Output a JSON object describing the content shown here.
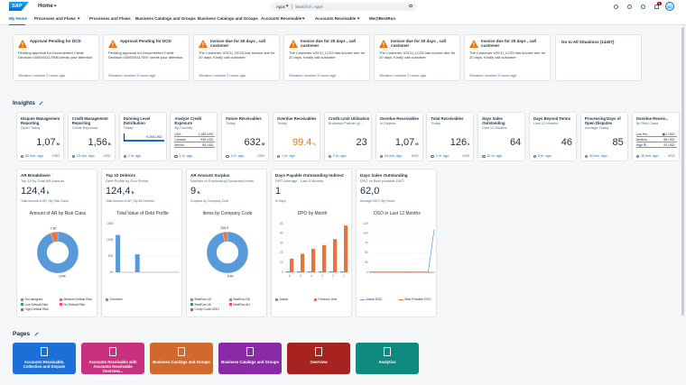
{
  "header": {
    "logo": "SAP",
    "title": "Home",
    "search_scope": "Apps",
    "search_placeholder": "Search in: Apps",
    "notification_count": "1",
    "avatar": "DJ"
  },
  "nav": [
    "My Home",
    "Processes and Flows",
    "Processes and Flows",
    "Business Catalogs and Groups",
    "Business Catalogs and Groups",
    "Accounts Receivable",
    "Accounts Receivable",
    "Me@BestRun"
  ],
  "situations": [
    {
      "title": "Approval Pending for DCD",
      "text": "Pending approval for Documented Credit Decision 0300001117598 needs your attention.",
      "footer": "Situation created 3 hours ago"
    },
    {
      "title": "Approval Pending for DCD",
      "text": "Pending approval for Documented Credit Decision 0300001117597 needs your attention.",
      "footer": "Situation created 3 hours ago"
    },
    {
      "title": "Invoice due for 20 days , call customer",
      "text": "The Customer USCU_SC03 has invoice due for 20 days. Kindly call customer",
      "footer": "Situation created 3 hours ago"
    },
    {
      "title": "Invoice due for 20 days , call customer",
      "text": "The Customer USCU_LC03 has invoice due for 20 days. Kindly call customer",
      "footer": "Situation created 3 hours ago"
    },
    {
      "title": "Invoice due for 20 days , call customer",
      "text": "The Customer USCU_LC04 has invoice due for 20 days. Kindly call customer",
      "footer": "Situation created 3 hours ago"
    },
    {
      "title": "Invoice due for 20 days , call customer",
      "text": "The Customer USCU_LC05 has invoice due for 20 days. Kindly call customer",
      "footer": "Situation created 3 hours ago"
    }
  ],
  "all_situations": "Go to All Situations (14407)",
  "insights": {
    "title": "Insights",
    "tiles": [
      {
        "title": "Dispute Management Reporting",
        "subtitle": "Open Today",
        "value": "1,07",
        "scale": "M",
        "footer": "50 min. ago",
        "unit": "USD"
      },
      {
        "title": "Credit Management Reporting",
        "subtitle": "Credit Exposure",
        "value": "1,56",
        "scale": "B",
        "footer": "15 min. ago",
        "unit": "USD"
      },
      {
        "title": "Dunning Level Distribution",
        "subtitle": "Today",
        "bar_label": "9,208 USD",
        "footer": "2 hr. ago"
      },
      {
        "title": "Analyze Credit Exposure",
        "subtitle": "By Country",
        "rows": [
          {
            "label": "USA",
            "value": "1,158 USD"
          },
          {
            "label": "Canada",
            "value": "935 USD"
          },
          {
            "label": "Mexico",
            "value": "88 USD"
          }
        ],
        "footer": "1 hr. ago"
      },
      {
        "title": "Future Receivables",
        "subtitle": "Today",
        "value": "632",
        "scale": "M",
        "footer": "1 hr. ago",
        "unit": "USD"
      },
      {
        "title": "Overdue Receivables",
        "subtitle": "Today",
        "value": "99.4",
        "scale": "%",
        "value_color": "#e9730c",
        "footer": "1 hr. ago"
      },
      {
        "title": "Credit Limit Utilization",
        "subtitle": "Business Partner gt ...",
        "value": "23",
        "footer": "2 hr. ago"
      },
      {
        "title": "Overdue Receivables",
        "subtitle": "In Dispute",
        "value": "1,07",
        "scale": "M",
        "footer": "15 min. ago",
        "unit": "USD"
      },
      {
        "title": "Total Receivables",
        "subtitle": "Today",
        "value": "126",
        "scale": "k",
        "footer": "1 hr. ago",
        "unit": "USD"
      },
      {
        "title": "Days Sales Outstanding",
        "subtitle": "Last 12 Months",
        "value": "64",
        "footer": "10 hr. ago"
      },
      {
        "title": "Days Beyond Terms",
        "subtitle": "Last 12 Months",
        "value": "46",
        "footer": "8 hr. ago"
      },
      {
        "title": "Processing Days of Open Disputes",
        "subtitle": "Average Today",
        "value": "85",
        "footer": "30 min. ago"
      },
      {
        "title": "Overdue Receiv...",
        "subtitle": "By Risk Class",
        "rows": [
          {
            "label": "Low Ris...",
            "value": "201 USD"
          },
          {
            "label": "Medium...",
            "value": "88 USD"
          },
          {
            "label": "High Ri...",
            "value": "52 USD"
          }
        ],
        "footer": "45 min. ago",
        "unit": "USD"
      }
    ]
  },
  "cards": [
    {
      "title": "AR Breakdown",
      "subtitle": "Top 10 by Total AR Amount",
      "value": "124,4",
      "scale": "k",
      "details": "Total Amount of AR | By Risk Class",
      "chart": {
        "type": "donut",
        "title": "Amount of AR by Risk Class",
        "values": [
          124,
          7.5
        ],
        "value_labels": [
          "124K",
          "7.5K"
        ],
        "legend": [
          {
            "name": "Not assigned",
            "color": "#5899da"
          },
          {
            "name": "Medium Default Risk",
            "color": "#e8743b"
          },
          {
            "name": "Low Default Risk",
            "color": "#19a979"
          },
          {
            "name": "No Default Risk",
            "color": "#ed4a7b"
          },
          {
            "name": "High Default Risk",
            "color": "#945ecf"
          }
        ]
      }
    },
    {
      "title": "Top 10 Debtors",
      "subtitle": "Debt Profile by Due Period",
      "value": "124,4",
      "scale": "k",
      "details": "Total Amount of AR | By All Overdue",
      "chart": {
        "type": "bar",
        "title": "Total Value of Debt Profile",
        "categories": [
          null,
          null,
          null,
          null,
          null,
          null,
          null,
          null,
          null,
          null
        ],
        "series": [
          {
            "name": "Overview",
            "color": "#5899da",
            "values": [
              115,
              0.5,
              0.5,
              55,
              0.5,
              0.5,
              0.5,
              0.5,
              0.5,
              0.5
            ]
          }
        ],
        "ylim": [
          0,
          150
        ],
        "yticks": [
          {
            "value": 0,
            "label": "0K"
          },
          {
            "value": 50,
            "label": "50K"
          },
          {
            "value": 100,
            "label": "100K"
          },
          {
            "value": 150,
            "label": "150K"
          }
        ]
      }
    },
    {
      "title": "AR Amount Surplus",
      "subtitle": "Number of Purchasing Document Items",
      "value": "9",
      "scale": "K",
      "details": "Grouped by Company Code",
      "chart": {
        "type": "donut",
        "title": "Items by Company Code",
        "values": [
          8400,
          325.9
        ],
        "value_labels": [
          "8.4K",
          "325.9"
        ],
        "legend": [
          {
            "name": "BestRun US",
            "color": "#5899da"
          },
          {
            "name": "BestRun DE",
            "color": "#e8743b"
          },
          {
            "name": "BestRun UK",
            "color": "#19a979"
          },
          {
            "name": "BestRun AU",
            "color": "#ed4a7b"
          },
          {
            "name": "Comp Code US01",
            "color": "#945ecf"
          }
        ]
      }
    },
    {
      "title": "Days Payable Outstanding Indirect",
      "subtitle": "DPO Average - Last 6 Months",
      "value": "1",
      "details": "In Days",
      "chart": {
        "type": "grouped_bar",
        "title": "DPO by Month",
        "categories": [
          "6",
          "5",
          "4",
          "3",
          "2",
          "1"
        ],
        "series": [
          {
            "name": "Actual",
            "color": "#5899da",
            "values": [
              1,
              1,
              1,
              1,
              1,
              1
            ]
          },
          {
            "name": "Previous Year",
            "color": "#e8743b",
            "values": [
              14,
              19,
              24,
              28,
              34,
              48
            ]
          }
        ],
        "ylim": [
          0,
          50
        ],
        "yticks": [
          0,
          10,
          20,
          30,
          40,
          50
        ]
      }
    },
    {
      "title": "Days Sales Outstanding",
      "subtitle": "DSO vs Best possible DSO",
      "value": "62,0",
      "details": "Average DSO | By Period",
      "chart": {
        "type": "line",
        "title": "DSO in Last 12 Months",
        "categories": [
          null,
          null,
          null,
          null,
          null,
          null,
          null,
          null,
          null,
          null,
          null,
          null
        ],
        "series": [
          {
            "name": "Actual DSO",
            "color": "#5899da",
            "values": [
              1,
              1,
              1,
              1,
              1,
              1,
              1,
              1,
              1,
              1,
              1,
              110
            ]
          },
          {
            "name": "Best Possible DSO",
            "color": "#e8743b",
            "values": [
              0,
              0,
              0,
              0,
              0,
              0,
              0,
              0,
              0,
              0,
              0,
              0
            ]
          }
        ],
        "ylim": [
          0,
          125
        ],
        "yticks": [
          0,
          25,
          50,
          75,
          100,
          125
        ]
      }
    }
  ],
  "pages": {
    "title": "Pages",
    "tiles": [
      {
        "label": "Accounts Receivable, Collection and Dispute",
        "color": "#1b6fd6"
      },
      {
        "label": "Accounts Receivable with Accounts Receivable Overview...",
        "color": "#c9317f"
      },
      {
        "label": "Business Catalogs and Groups",
        "color": "#d2682c"
      },
      {
        "label": "Business Catalogs and Groups",
        "color": "#8a2aa6"
      },
      {
        "label": "Overview",
        "color": "#a8231f"
      },
      {
        "label": "Analytics",
        "color": "#0f8a7f"
      }
    ]
  }
}
